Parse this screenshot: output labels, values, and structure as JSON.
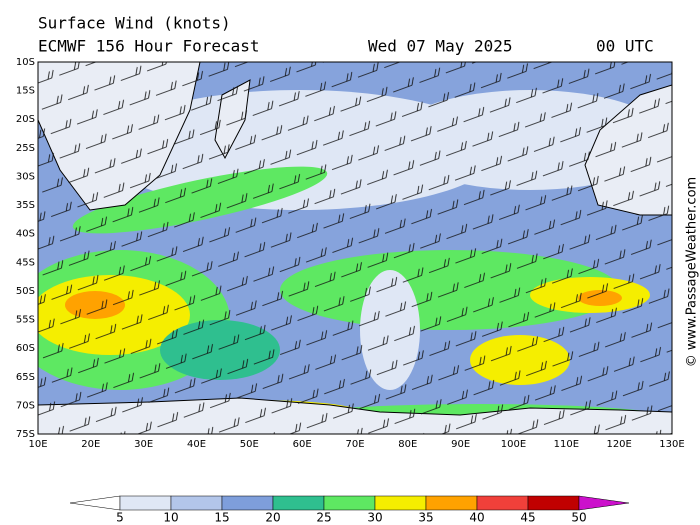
{
  "header": {
    "title": "Surface Wind (knots)",
    "model": "ECMWF 156 Hour Forecast",
    "date": "Wed 07 May 2025",
    "time": "00 UTC"
  },
  "map": {
    "lat_labels": [
      "10S",
      "15S",
      "20S",
      "25S",
      "30S",
      "35S",
      "40S",
      "45S",
      "50S",
      "55S",
      "60S",
      "65S",
      "70S",
      "75S"
    ],
    "lon_labels": [
      "10E",
      "20E",
      "30E",
      "40E",
      "50E",
      "60E",
      "70E",
      "80E",
      "90E",
      "100E",
      "110E",
      "120E",
      "130E"
    ]
  },
  "colorbar": {
    "labels": [
      "5",
      "10",
      "15",
      "20",
      "25",
      "30",
      "35",
      "40",
      "45",
      "50"
    ],
    "colors": [
      "#ffffff",
      "#dfe7f5",
      "#b3c6ea",
      "#7e9edb",
      "#2fbf8f",
      "#5ee862",
      "#f5ee00",
      "#ffa200",
      "#f0403a",
      "#c00000",
      "#cc10cc"
    ]
  },
  "copyright": "© www.PassageWeather.com"
}
